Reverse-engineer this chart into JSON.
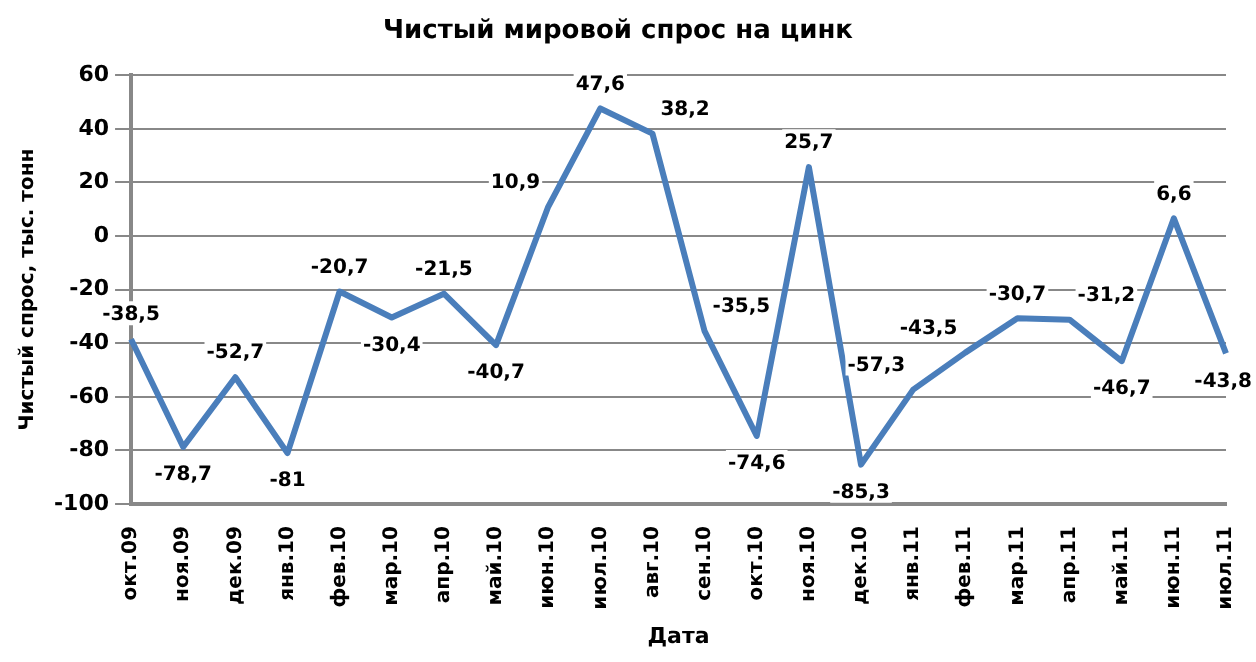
{
  "chart_data": {
    "type": "line",
    "title": "Чистый мировой спрос на цинк",
    "xlabel": "Дата",
    "ylabel": "Чистый спрос, тыс. тонн",
    "categories": [
      "окт.09",
      "ноя.09",
      "дек.09",
      "янв.10",
      "фев.10",
      "мар.10",
      "апр.10",
      "май.10",
      "июн.10",
      "июл.10",
      "авг.10",
      "сен.10",
      "окт.10",
      "ноя.10",
      "дек.10",
      "янв.11",
      "фев.11",
      "мар.11",
      "апр.11",
      "май.11",
      "июн.11",
      "июл.11"
    ],
    "series": [
      {
        "color": "#4a7ebb",
        "values": [
          -38.5,
          -78.7,
          -52.7,
          -81,
          -20.7,
          -30.4,
          -21.5,
          -40.7,
          10.9,
          47.6,
          38.2,
          -35.5,
          -74.6,
          25.7,
          -85.3,
          -57.3,
          -43.5,
          -30.7,
          -31.2,
          -46.7,
          6.6,
          -43.8
        ],
        "value_labels": [
          "-38,5",
          "-78,7",
          "-52,7",
          "-81",
          "-20,7",
          "-30,4",
          "-21,5",
          "-40,7",
          "10,9",
          "47,6",
          "38,2",
          "-35,5",
          "-74,6",
          "25,7",
          "-85,3",
          "-57,3",
          "-43,5",
          "-30,7",
          "-31,2",
          "-46,7",
          "6,6",
          "-43,8"
        ]
      }
    ],
    "ylim": [
      -100,
      60
    ],
    "yticks": [
      -100,
      -80,
      -60,
      -40,
      -20,
      0,
      20,
      40,
      60
    ],
    "grid": "y",
    "legend": false,
    "marker": "none",
    "line_style": "solid"
  }
}
